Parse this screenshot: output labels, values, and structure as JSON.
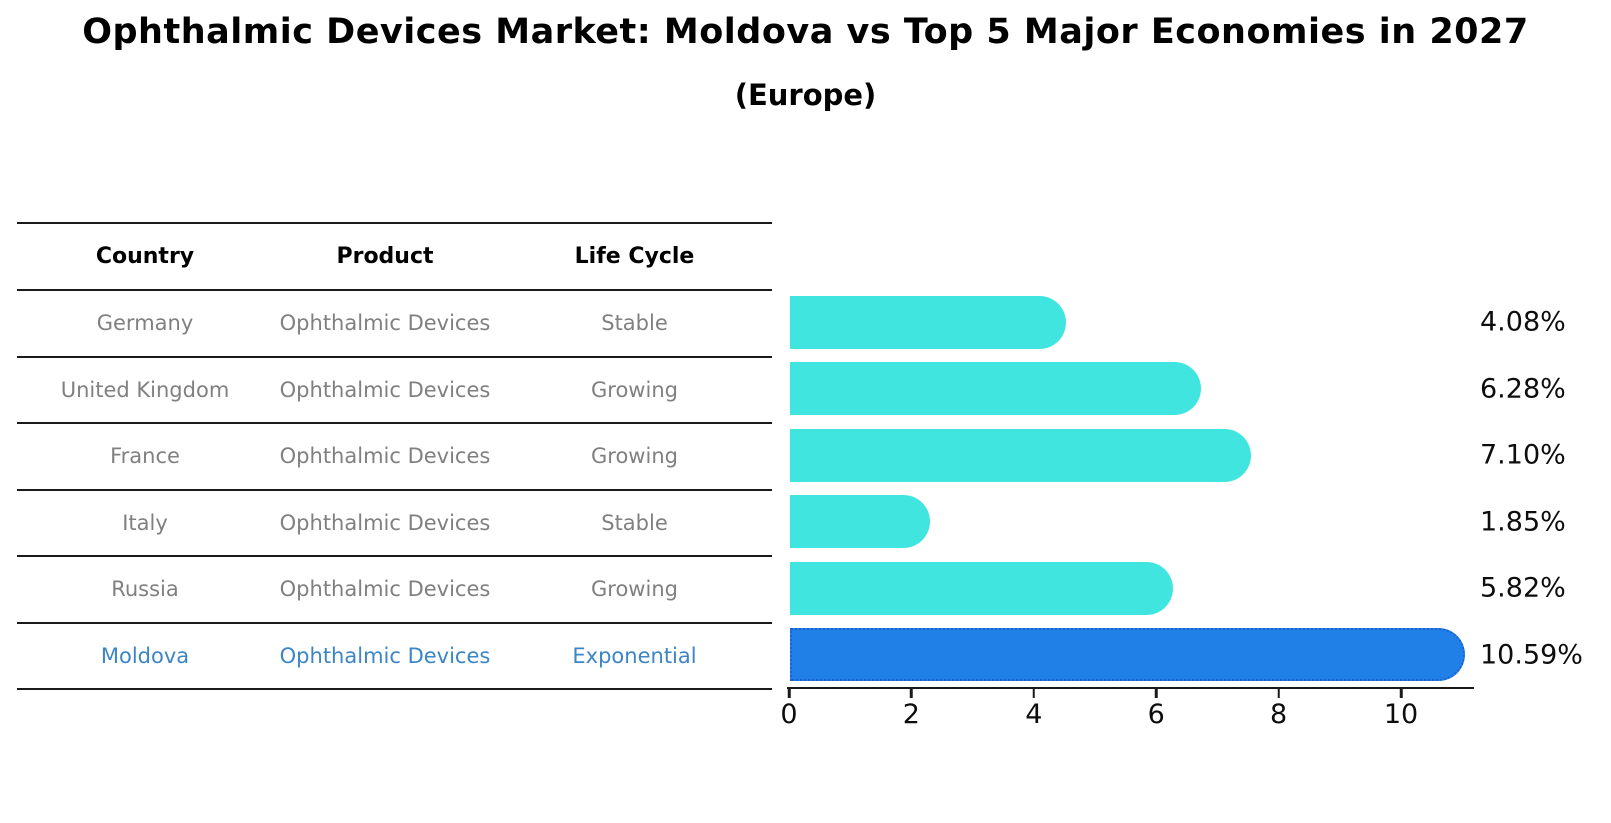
{
  "title": "Ophthalmic Devices Market: Moldova vs Top 5 Major Economies in 2027",
  "subtitle": "(Europe)",
  "table": {
    "headers": {
      "country": "Country",
      "product": "Product",
      "life_cycle": "Life Cycle"
    },
    "rows": [
      {
        "country": "Germany",
        "product": "Ophthalmic Devices",
        "life_cycle": "Stable"
      },
      {
        "country": "United Kingdom",
        "product": "Ophthalmic Devices",
        "life_cycle": "Growing"
      },
      {
        "country": "France",
        "product": "Ophthalmic Devices",
        "life_cycle": "Growing"
      },
      {
        "country": "Italy",
        "product": "Ophthalmic Devices",
        "life_cycle": "Stable"
      },
      {
        "country": "Russia",
        "product": "Ophthalmic Devices",
        "life_cycle": "Growing"
      },
      {
        "country": "Moldova",
        "product": "Ophthalmic Devices",
        "life_cycle": "Exponential"
      }
    ],
    "highlight_row": 5
  },
  "chart_data": {
    "type": "bar",
    "orientation": "horizontal",
    "title": "Ophthalmic Devices Market: Moldova vs Top 5 Major Economies in 2027",
    "subtitle": "(Europe)",
    "categories": [
      "Germany",
      "United Kingdom",
      "France",
      "Italy",
      "Russia",
      "Moldova"
    ],
    "values": [
      4.08,
      6.28,
      7.1,
      1.85,
      5.82,
      10.59
    ],
    "value_labels": [
      "4.08%",
      "6.28%",
      "7.10%",
      "1.85%",
      "5.82%",
      "10.59%"
    ],
    "x_ticks": [
      0,
      2,
      4,
      6,
      8,
      10
    ],
    "x_tick_labels": [
      "0",
      "2",
      "4",
      "6",
      "8",
      "10"
    ],
    "xlim": [
      0,
      11.12
    ],
    "grid": false,
    "legend": false,
    "highlight_index": 5,
    "bar_color": "#40E5E0",
    "highlight_bar_color": "#2080E8",
    "highlight_border_color": "#1A62D0"
  },
  "colors": {
    "row_text": "#808080",
    "highlight_text": "#3C85C6",
    "header_text": "#000000",
    "axis": "#1A1A1A",
    "value_text": "#0D0D0D"
  }
}
